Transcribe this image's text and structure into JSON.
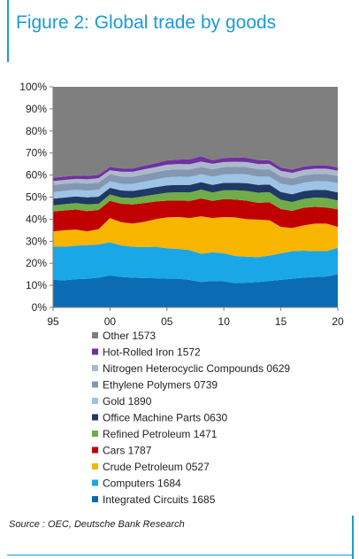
{
  "header": {
    "title": "Figure 2: Global trade by goods"
  },
  "footer": {
    "source": "Source : OEC, Deutsche Bank Research"
  },
  "chart_data": {
    "type": "area",
    "stacked": true,
    "normalized": true,
    "title": "Figure 2: Global trade by goods",
    "xlabel": "",
    "ylabel": "",
    "x": [
      1995,
      1996,
      1997,
      1998,
      1999,
      2000,
      2001,
      2002,
      2003,
      2004,
      2005,
      2006,
      2007,
      2008,
      2009,
      2010,
      2011,
      2012,
      2013,
      2014,
      2015,
      2016,
      2017,
      2018,
      2019,
      2020
    ],
    "xlim": [
      1995,
      2020
    ],
    "ylim": [
      0,
      100
    ],
    "x_tick_labels": [
      "95",
      "00",
      "05",
      "10",
      "15",
      "20"
    ],
    "x_tick_values": [
      1995,
      2000,
      2005,
      2010,
      2015,
      2020
    ],
    "y_tick_labels": [
      "0%",
      "10%",
      "20%",
      "30%",
      "40%",
      "50%",
      "60%",
      "70%",
      "80%",
      "90%",
      "100%"
    ],
    "y_tick_values": [
      0,
      10,
      20,
      30,
      40,
      50,
      60,
      70,
      80,
      90,
      100
    ],
    "grid": false,
    "legend_position": "bottom",
    "series": [
      {
        "name": "Integrated Circuits 1685",
        "color": "#0b6cb3",
        "values": [
          12.5,
          12.3,
          12.8,
          13.0,
          13.5,
          14.5,
          13.8,
          13.5,
          13.3,
          13.2,
          13.0,
          13.0,
          12.5,
          11.5,
          12.0,
          11.8,
          11.0,
          11.2,
          11.5,
          12.0,
          12.5,
          13.0,
          13.5,
          13.8,
          14.0,
          15.0
        ]
      },
      {
        "name": "Computers 1684",
        "color": "#1aa7e8",
        "values": [
          15.0,
          15.2,
          15.2,
          15.2,
          15.0,
          15.0,
          14.3,
          14.0,
          14.0,
          14.3,
          13.8,
          13.5,
          13.5,
          12.8,
          13.0,
          12.7,
          12.3,
          11.8,
          11.3,
          11.5,
          12.0,
          12.5,
          12.2,
          11.7,
          11.5,
          12.0
        ]
      },
      {
        "name": "Crude Petroleum 0527",
        "color": "#f7b500",
        "values": [
          7.0,
          7.5,
          7.3,
          6.3,
          7.0,
          11.0,
          10.5,
          10.5,
          11.5,
          12.5,
          14.0,
          14.5,
          14.5,
          17.0,
          15.5,
          16.5,
          17.5,
          17.0,
          17.0,
          16.0,
          12.0,
          10.5,
          11.5,
          12.5,
          12.5,
          9.5
        ]
      },
      {
        "name": "Cars 1787",
        "color": "#c00000",
        "values": [
          9.0,
          9.0,
          9.1,
          9.2,
          8.7,
          7.8,
          8.4,
          8.7,
          8.5,
          8.0,
          7.6,
          7.5,
          7.8,
          8.1,
          7.8,
          8.1,
          8.1,
          8.4,
          7.6,
          8.2,
          8.1,
          7.8,
          8.0,
          7.6,
          7.3,
          8.0
        ]
      },
      {
        "name": "Refined Petroleum 1471",
        "color": "#70ad47",
        "values": [
          2.8,
          2.8,
          2.9,
          3.0,
          2.8,
          2.9,
          2.8,
          2.9,
          3.1,
          3.2,
          3.6,
          3.7,
          3.8,
          4.0,
          3.8,
          4.0,
          4.2,
          4.4,
          4.6,
          4.5,
          4.2,
          4.0,
          4.0,
          4.2,
          4.3,
          4.0
        ]
      },
      {
        "name": "Office Machine Parts 0630",
        "color": "#203864",
        "values": [
          3.0,
          3.0,
          3.0,
          3.2,
          3.2,
          3.0,
          3.2,
          3.2,
          3.2,
          3.3,
          3.3,
          3.3,
          3.4,
          3.4,
          3.4,
          3.4,
          3.4,
          3.5,
          3.5,
          3.5,
          3.5,
          3.5,
          3.5,
          3.5,
          3.6,
          3.6
        ]
      },
      {
        "name": "Gold 1890",
        "color": "#9dc3e6",
        "values": [
          3.0,
          3.0,
          3.0,
          3.0,
          3.2,
          3.0,
          3.0,
          3.2,
          3.4,
          3.5,
          3.7,
          3.8,
          3.7,
          3.6,
          3.8,
          3.8,
          4.0,
          4.0,
          3.8,
          3.6,
          3.8,
          3.9,
          3.9,
          3.9,
          4.0,
          4.2
        ]
      },
      {
        "name": "Ethylene Polymers 0739",
        "color": "#8497b0",
        "values": [
          3.2,
          3.2,
          3.2,
          3.2,
          3.2,
          3.2,
          3.3,
          3.3,
          3.3,
          3.3,
          3.3,
          3.3,
          3.3,
          3.3,
          3.3,
          3.3,
          3.3,
          3.3,
          3.3,
          3.3,
          3.3,
          3.3,
          3.3,
          3.3,
          3.3,
          3.3
        ]
      },
      {
        "name": "Nitrogen Heterocyclic Compounds 0629",
        "color": "#acb9ca",
        "values": [
          1.8,
          1.8,
          1.8,
          2.0,
          2.0,
          1.8,
          2.2,
          2.2,
          2.3,
          2.3,
          2.4,
          2.4,
          2.4,
          2.4,
          2.5,
          2.3,
          2.2,
          2.3,
          2.4,
          2.4,
          2.5,
          2.5,
          2.4,
          2.4,
          2.4,
          2.4
        ]
      },
      {
        "name": "Hot-Rolled Iron 1572",
        "color": "#7030a0",
        "values": [
          1.5,
          1.5,
          1.5,
          1.5,
          1.5,
          1.5,
          1.5,
          1.5,
          1.6,
          1.7,
          1.9,
          2.0,
          2.2,
          2.4,
          1.6,
          1.8,
          2.0,
          1.9,
          1.8,
          1.7,
          1.5,
          1.5,
          1.5,
          1.5,
          1.5,
          1.5
        ]
      },
      {
        "name": "Other 1573",
        "color": "#7f7f7f",
        "values": [
          41.2,
          40.7,
          40.2,
          41.4,
          40.9,
          36.3,
          37.0,
          37.0,
          35.8,
          35.2,
          34.4,
          33.0,
          33.9,
          31.5,
          35.3,
          32.3,
          32.0,
          32.2,
          33.2,
          33.3,
          36.6,
          37.5,
          36.2,
          35.6,
          35.6,
          36.5
        ]
      }
    ]
  }
}
